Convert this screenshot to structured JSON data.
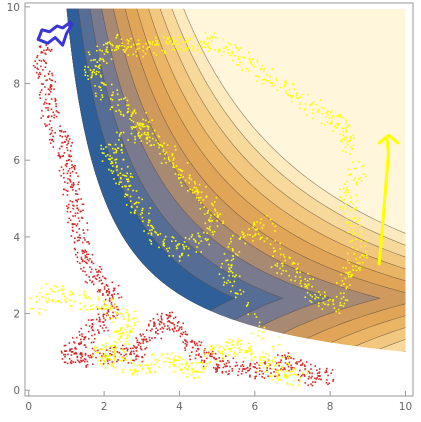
{
  "chart_data": {
    "type": "scatter",
    "title": "",
    "xlabel": "",
    "ylabel": "",
    "xlim": [
      -0.1,
      10.2
    ],
    "ylim": [
      -0.15,
      10.1
    ],
    "x_ticks": [
      0,
      2,
      4,
      6,
      8,
      10
    ],
    "y_ticks": [
      0,
      2,
      4,
      6,
      8,
      10
    ],
    "x_tick_labels": [
      "0",
      "2",
      "4",
      "6",
      "8",
      "10"
    ],
    "y_tick_labels": [
      "0",
      "2",
      "4",
      "6",
      "8",
      "10"
    ],
    "grid": false,
    "legend": "none",
    "background_region": {
      "description_type": "filled contour",
      "x_range": [
        1.1,
        10
      ],
      "y_range": [
        1.05,
        9.95
      ],
      "boundary_note": "hyperbolic lower-left boundary, region shaded where x*y > ~10",
      "bands": [
        {
          "level": 1,
          "color": "#1f4e8a"
        },
        {
          "level": 2,
          "color": "#2f5f98"
        },
        {
          "level": 3,
          "color": "#566d96"
        },
        {
          "level": 4,
          "color": "#7a7a8f"
        },
        {
          "level": 5,
          "color": "#a88a73"
        },
        {
          "level": 6,
          "color": "#cf9a5c"
        },
        {
          "level": 7,
          "color": "#e0a557"
        },
        {
          "level": 8,
          "color": "#ebb566"
        },
        {
          "level": 9,
          "color": "#f2c780"
        },
        {
          "level": 10,
          "color": "#f8d99c"
        },
        {
          "level": 11,
          "color": "#fdebbf"
        },
        {
          "level": 12,
          "color": "#fff6dc"
        }
      ]
    },
    "series": [
      {
        "color": "#d42a2a",
        "marker": "small-dot",
        "approx_path": [
          [
            0.4,
            9.0
          ],
          [
            0.3,
            8.5
          ],
          [
            0.45,
            8.0
          ],
          [
            0.5,
            7.5
          ],
          [
            0.6,
            7.0
          ],
          [
            0.8,
            6.6
          ],
          [
            1.0,
            6.2
          ],
          [
            1.0,
            5.8
          ],
          [
            1.1,
            5.3
          ],
          [
            1.2,
            4.8
          ],
          [
            1.3,
            4.3
          ],
          [
            1.4,
            3.8
          ],
          [
            1.5,
            3.4
          ],
          [
            1.7,
            3.0
          ],
          [
            2.0,
            2.7
          ],
          [
            2.3,
            2.4
          ],
          [
            2.1,
            2.0
          ],
          [
            1.8,
            1.7
          ],
          [
            1.5,
            1.4
          ],
          [
            1.2,
            1.1
          ],
          [
            1.0,
            0.9
          ],
          [
            1.4,
            0.8
          ],
          [
            1.9,
            0.9
          ],
          [
            2.4,
            1.0
          ],
          [
            2.8,
            0.9
          ],
          [
            3.0,
            1.3
          ],
          [
            3.3,
            1.6
          ],
          [
            3.6,
            1.9
          ],
          [
            3.9,
            1.7
          ],
          [
            4.2,
            1.3
          ],
          [
            4.4,
            1.0
          ],
          [
            4.8,
            0.8
          ],
          [
            5.2,
            0.7
          ],
          [
            5.6,
            0.6
          ],
          [
            6.0,
            0.5
          ],
          [
            6.5,
            0.6
          ],
          [
            7.0,
            0.8
          ],
          [
            7.3,
            0.5
          ],
          [
            7.6,
            0.3
          ],
          [
            8.0,
            0.4
          ]
        ]
      },
      {
        "color": "#ffff00",
        "marker": "small-dot",
        "approx_path": [
          [
            0.2,
            2.2
          ],
          [
            0.6,
            2.6
          ],
          [
            1.2,
            2.4
          ],
          [
            1.8,
            2.3
          ],
          [
            2.2,
            2.1
          ],
          [
            2.7,
            1.8
          ],
          [
            2.5,
            1.4
          ],
          [
            2.2,
            1.1
          ],
          [
            1.8,
            0.9
          ],
          [
            2.4,
            0.7
          ],
          [
            3.0,
            0.6
          ],
          [
            3.5,
            0.8
          ],
          [
            4.0,
            0.7
          ],
          [
            4.4,
            0.5
          ],
          [
            4.8,
            0.9
          ],
          [
            5.2,
            1.1
          ],
          [
            5.6,
            1.2
          ],
          [
            6.0,
            0.9
          ],
          [
            6.4,
            0.6
          ],
          [
            6.8,
            0.4
          ],
          [
            7.2,
            0.3
          ],
          [
            5.6,
            2.4
          ],
          [
            5.2,
            3.2
          ],
          [
            5.6,
            4.0
          ],
          [
            6.2,
            4.4
          ],
          [
            6.6,
            3.4
          ],
          [
            7.2,
            3.0
          ],
          [
            7.6,
            2.4
          ],
          [
            8.2,
            2.2
          ],
          [
            8.4,
            3.0
          ],
          [
            8.8,
            3.6
          ],
          [
            8.6,
            4.4
          ],
          [
            8.4,
            5.2
          ],
          [
            8.8,
            5.8
          ],
          [
            8.4,
            6.6
          ],
          [
            8.2,
            7.0
          ],
          [
            7.8,
            7.2
          ],
          [
            7.2,
            7.6
          ],
          [
            6.6,
            8.0
          ],
          [
            6.0,
            8.4
          ],
          [
            5.4,
            8.8
          ],
          [
            4.9,
            9.2
          ],
          [
            4.4,
            9.0
          ],
          [
            3.9,
            9.1
          ],
          [
            3.4,
            9.0
          ],
          [
            2.8,
            8.9
          ],
          [
            2.3,
            9.1
          ],
          [
            1.9,
            8.8
          ],
          [
            1.6,
            8.4
          ],
          [
            2.0,
            7.8
          ],
          [
            2.5,
            7.4
          ],
          [
            3.0,
            7.0
          ],
          [
            3.4,
            6.4
          ],
          [
            3.8,
            6.0
          ],
          [
            4.2,
            5.5
          ],
          [
            4.6,
            5.0
          ],
          [
            5.0,
            4.6
          ],
          [
            4.6,
            4.0
          ],
          [
            4.0,
            3.6
          ],
          [
            3.4,
            4.0
          ],
          [
            3.0,
            4.6
          ],
          [
            2.6,
            5.2
          ],
          [
            2.4,
            5.8
          ],
          [
            2.0,
            6.2
          ],
          [
            2.6,
            6.6
          ],
          [
            3.2,
            6.8
          ]
        ]
      }
    ],
    "lines": [
      {
        "color": "#3a35d6",
        "description": "short blue trajectory",
        "points": [
          [
            1.1,
            9.6
          ],
          [
            0.9,
            9.45
          ],
          [
            0.75,
            9.5
          ],
          [
            0.55,
            9.35
          ],
          [
            0.35,
            9.4
          ],
          [
            0.25,
            9.15
          ],
          [
            0.5,
            9.05
          ],
          [
            0.7,
            9.2
          ],
          [
            0.9,
            9.0
          ],
          [
            1.0,
            9.3
          ],
          [
            1.15,
            9.55
          ]
        ]
      },
      {
        "color": "#ffff00",
        "description": "yellow trajectory with upward arrow",
        "points": [
          [
            9.3,
            3.3
          ],
          [
            9.35,
            3.8
          ],
          [
            9.4,
            4.4
          ],
          [
            9.45,
            5.0
          ],
          [
            9.5,
            5.6
          ],
          [
            9.55,
            6.2
          ],
          [
            9.5,
            6.6
          ]
        ],
        "arrow_tail": [
          [
            9.3,
            6.45
          ],
          [
            9.55,
            6.65
          ],
          [
            9.8,
            6.45
          ]
        ]
      }
    ]
  }
}
